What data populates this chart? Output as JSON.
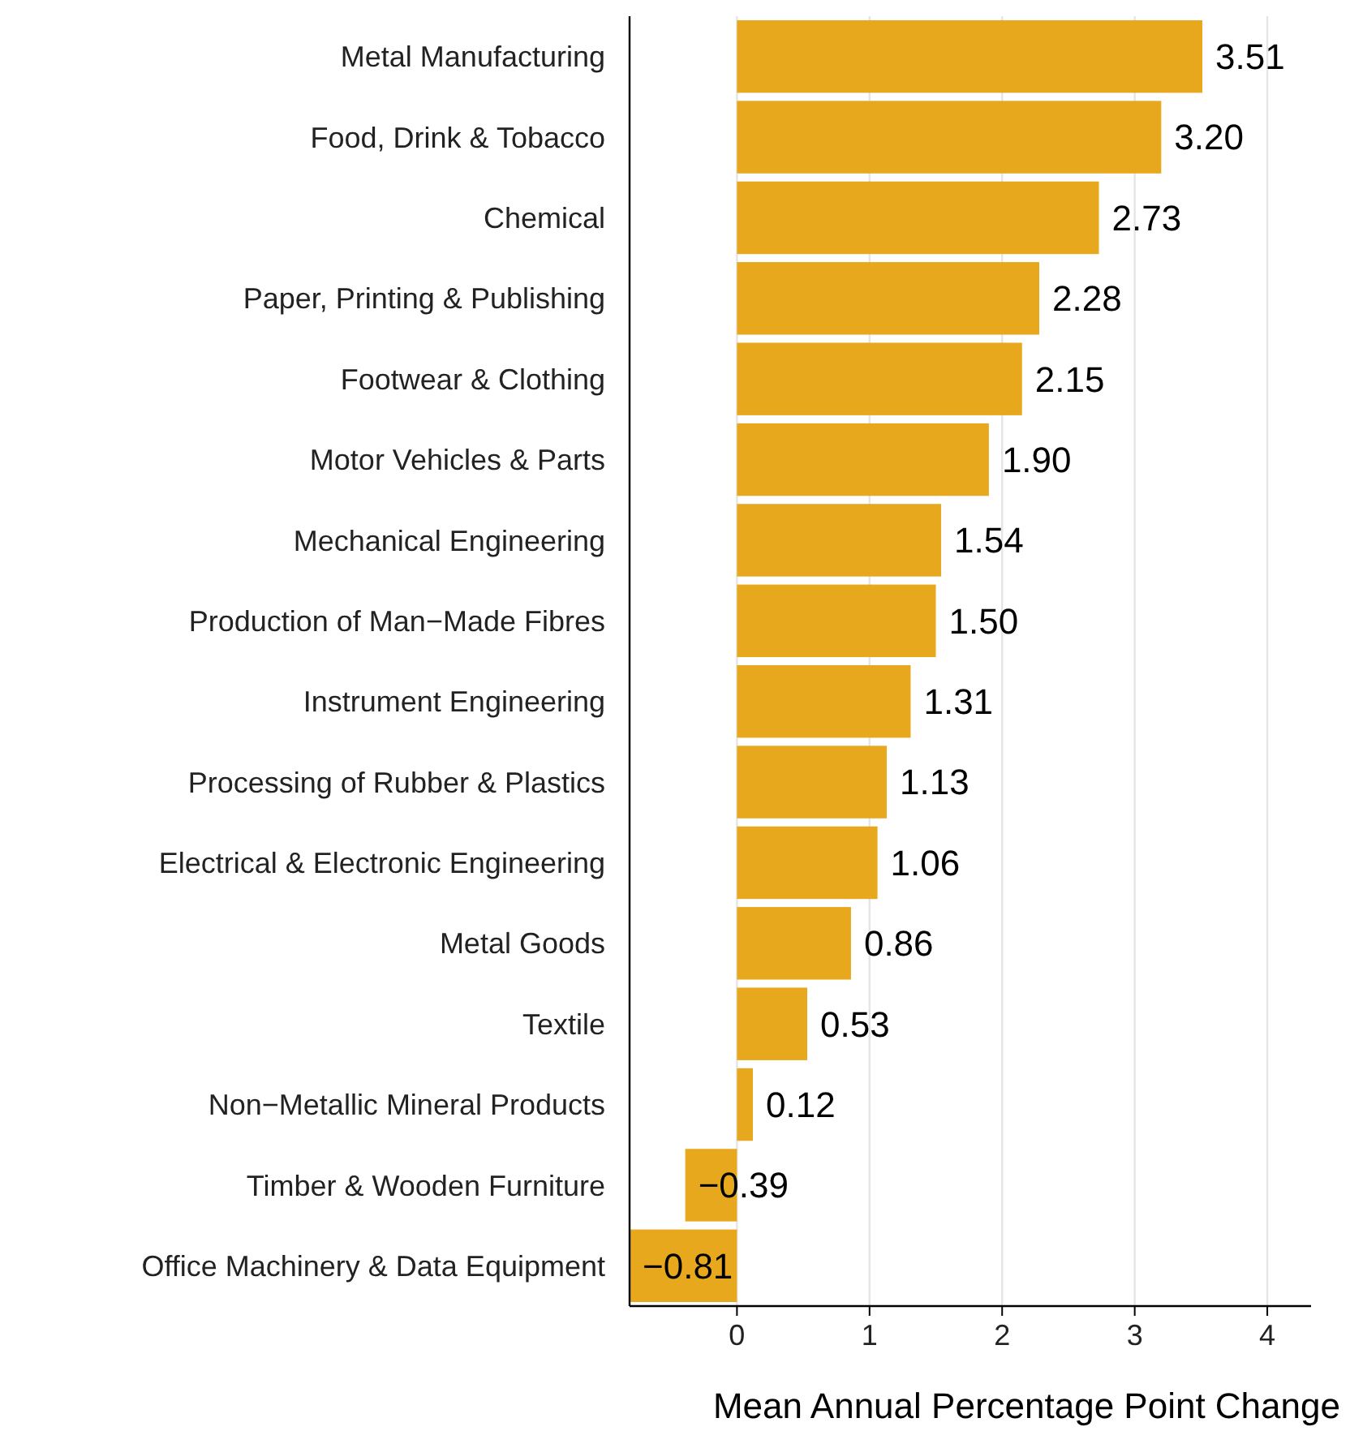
{
  "chart_data": {
    "type": "bar",
    "orientation": "horizontal",
    "xlabel": "Mean Annual Percentage Point Change",
    "categories": [
      "Metal Manufacturing",
      "Food, Drink & Tobacco",
      "Chemical",
      "Paper, Printing & Publishing",
      "Footwear & Clothing",
      "Motor Vehicles & Parts",
      "Mechanical Engineering",
      "Production of Man−Made Fibres",
      "Instrument Engineering",
      "Processing of Rubber & Plastics",
      "Electrical & Electronic Engineering",
      "Metal Goods",
      "Textile",
      "Non−Metallic Mineral Products",
      "Timber & Wooden Furniture",
      "Office Machinery & Data Equipment"
    ],
    "values": [
      3.51,
      3.2,
      2.73,
      2.28,
      2.15,
      1.9,
      1.54,
      1.5,
      1.31,
      1.13,
      1.06,
      0.86,
      0.53,
      0.12,
      -0.39,
      -0.81
    ],
    "value_labels": [
      "3.51",
      "3.20",
      "2.73",
      "2.28",
      "2.15",
      "1.90",
      "1.54",
      "1.50",
      "1.31",
      "1.13",
      "1.06",
      "0.86",
      "0.53",
      "0.12",
      "−0.39",
      "−0.81"
    ],
    "color": "#e8a81e",
    "xlim": [
      -0.81,
      4.33
    ],
    "xticks": [
      0,
      1,
      2,
      3,
      4
    ],
    "grid": "x"
  }
}
